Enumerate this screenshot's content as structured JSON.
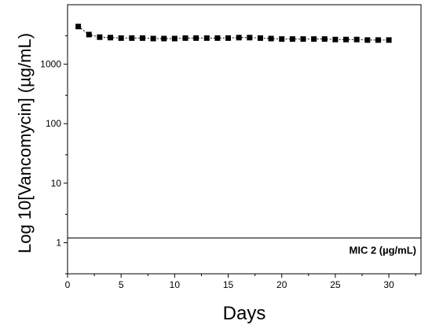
{
  "chart_data": {
    "type": "scatter",
    "xlabel": "Days",
    "ylabel": "Log 10[Vancomycin] (µg/mL)",
    "xscale": "linear",
    "yscale": "log",
    "xlim": [
      0,
      33
    ],
    "ylim": [
      0.3,
      10000
    ],
    "xticks": [
      0,
      5,
      10,
      15,
      20,
      25,
      30
    ],
    "yticks": [
      1,
      10,
      100,
      1000
    ],
    "grid": false,
    "marker": "square",
    "series": [
      {
        "x": [
          1,
          2,
          3,
          4,
          5,
          6,
          7,
          8,
          9,
          10,
          11,
          12,
          13,
          14,
          15,
          16,
          17,
          18,
          19,
          20,
          21,
          22,
          23,
          24,
          25,
          26,
          27,
          28,
          29,
          30
        ],
        "y": [
          4300,
          3150,
          2850,
          2800,
          2750,
          2750,
          2750,
          2700,
          2700,
          2700,
          2750,
          2750,
          2750,
          2750,
          2750,
          2800,
          2800,
          2750,
          2700,
          2650,
          2650,
          2650,
          2650,
          2650,
          2600,
          2600,
          2600,
          2550,
          2550,
          2550
        ]
      }
    ],
    "reference_line": {
      "y": 1.2,
      "label": "MIC 2 (µg/mL)"
    }
  }
}
